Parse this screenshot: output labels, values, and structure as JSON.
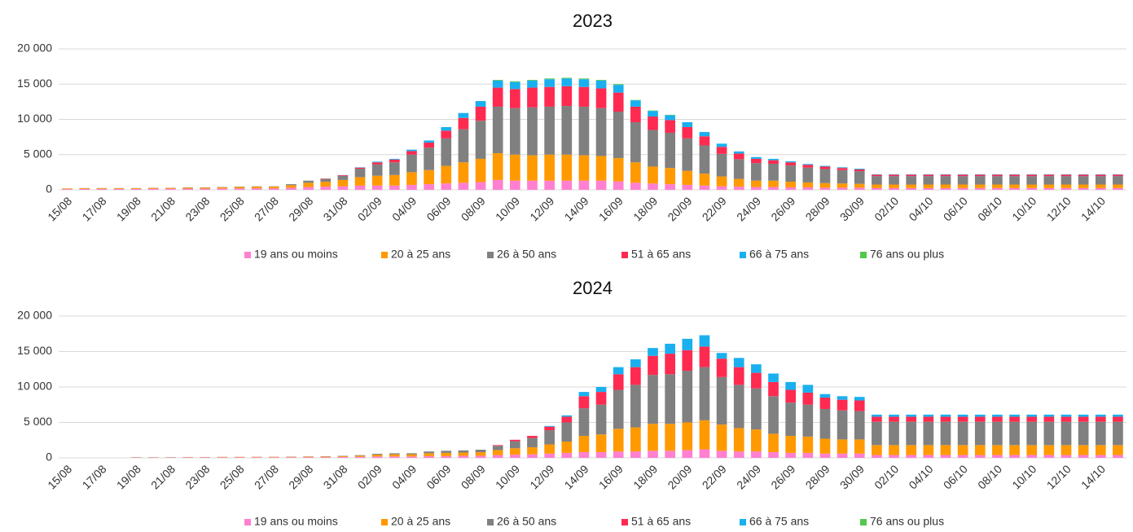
{
  "chart_data": [
    {
      "type": "bar",
      "stacked": true,
      "title": "2023",
      "categories": [
        "15/08",
        null,
        "17/08",
        null,
        "19/08",
        null,
        "21/08",
        null,
        "23/08",
        null,
        "25/08",
        null,
        "27/08",
        null,
        "29/08",
        null,
        "31/08",
        null,
        "02/09",
        null,
        "04/09",
        null,
        "06/09",
        null,
        "08/09",
        null,
        "10/09",
        null,
        "12/09",
        null,
        "14/09",
        null,
        "16/09",
        null,
        "18/09",
        null,
        "20/09",
        null,
        "22/09",
        null,
        "24/09",
        null,
        "26/09",
        null,
        "28/09",
        null,
        "30/09",
        null,
        "02/10",
        null,
        "04/10",
        null,
        "06/10",
        null,
        "08/10",
        null,
        "10/10",
        null,
        "12/10",
        null,
        "14/10",
        null
      ],
      "ylim": [
        0,
        20000
      ],
      "yticks": [
        0,
        {
          "value": 5000,
          "label": "5 000"
        },
        {
          "value": 10000,
          "label": "10 000"
        },
        {
          "value": 15000,
          "label": "15 000"
        },
        {
          "value": 20000,
          "label": "20 000"
        }
      ],
      "grid": true,
      "legend": "bottom",
      "series": [
        {
          "name": "19 ans ou moins",
          "color": "#ff80d0",
          "values": [
            100,
            120,
            120,
            120,
            120,
            150,
            150,
            170,
            170,
            200,
            200,
            220,
            220,
            300,
            400,
            450,
            500,
            600,
            600,
            600,
            700,
            800,
            900,
            1000,
            1100,
            1400,
            1300,
            1300,
            1300,
            1300,
            1300,
            1300,
            1200,
            1000,
            900,
            800,
            700,
            600,
            500,
            450,
            400,
            400,
            350,
            350,
            300,
            300,
            300,
            250,
            250,
            250,
            250,
            250,
            250,
            250,
            250,
            250,
            250,
            250,
            250,
            250,
            250,
            250
          ]
        },
        {
          "name": "20 à 25 ans",
          "color": "#ff9900",
          "values": [
            80,
            100,
            100,
            100,
            100,
            120,
            120,
            140,
            140,
            160,
            200,
            230,
            230,
            350,
            600,
            700,
            900,
            1200,
            1400,
            1500,
            1800,
            2000,
            2500,
            2900,
            3300,
            3800,
            3700,
            3600,
            3700,
            3700,
            3600,
            3500,
            3300,
            2900,
            2400,
            2300,
            2000,
            1700,
            1400,
            1100,
            900,
            900,
            800,
            700,
            650,
            600,
            550,
            500,
            500,
            500,
            500,
            500,
            500,
            500,
            500,
            500,
            500,
            500,
            500,
            500,
            500,
            500
          ]
        },
        {
          "name": "26 à 50 ans",
          "color": "#808080",
          "values": [
            20,
            30,
            30,
            30,
            30,
            30,
            30,
            40,
            40,
            40,
            50,
            50,
            50,
            150,
            300,
            400,
            600,
            1200,
            1600,
            1800,
            2500,
            3200,
            3900,
            4700,
            5400,
            6600,
            6600,
            6800,
            6800,
            6900,
            6900,
            6800,
            6600,
            5700,
            5200,
            5000,
            4600,
            4000,
            3200,
            2800,
            2500,
            2400,
            2300,
            2100,
            2000,
            1900,
            1800,
            1200,
            1200,
            1200,
            1200,
            1200,
            1200,
            1200,
            1200,
            1200,
            1200,
            1200,
            1200,
            1200,
            1200,
            1200
          ]
        },
        {
          "name": "51 à 65 ans",
          "color": "#ff2a50",
          "values": [
            0,
            0,
            0,
            0,
            0,
            0,
            0,
            0,
            0,
            0,
            0,
            0,
            0,
            0,
            0,
            50,
            80,
            150,
            300,
            400,
            500,
            700,
            1100,
            1600,
            2000,
            2700,
            2700,
            2800,
            2800,
            2800,
            2800,
            2800,
            2700,
            2200,
            1900,
            1800,
            1600,
            1300,
            1000,
            800,
            600,
            500,
            450,
            400,
            350,
            300,
            250,
            200,
            200,
            200,
            200,
            200,
            200,
            200,
            200,
            200,
            200,
            200,
            200,
            200,
            200,
            200
          ]
        },
        {
          "name": "66 à 75 ans",
          "color": "#1ab0f0",
          "values": [
            0,
            0,
            0,
            0,
            0,
            0,
            0,
            0,
            0,
            0,
            0,
            0,
            0,
            0,
            0,
            0,
            20,
            50,
            100,
            100,
            200,
            300,
            500,
            700,
            800,
            1000,
            1000,
            1000,
            1100,
            1100,
            1100,
            1100,
            1100,
            900,
            800,
            700,
            700,
            600,
            450,
            300,
            250,
            200,
            150,
            120,
            100,
            100,
            100,
            50,
            50,
            50,
            50,
            50,
            50,
            50,
            50,
            50,
            50,
            50,
            50,
            50,
            50,
            50
          ]
        },
        {
          "name": "76 ans ou plus",
          "color": "#55c84c",
          "values": [
            0,
            0,
            0,
            0,
            0,
            0,
            0,
            0,
            0,
            0,
            0,
            0,
            0,
            0,
            0,
            0,
            0,
            0,
            0,
            0,
            0,
            0,
            0,
            0,
            0,
            100,
            100,
            100,
            100,
            100,
            100,
            100,
            100,
            50,
            50,
            50,
            0,
            0,
            0,
            0,
            0,
            0,
            0,
            0,
            0,
            0,
            0,
            0,
            0,
            0,
            0,
            0,
            0,
            0,
            0,
            0,
            0,
            0,
            0,
            0,
            0,
            0
          ]
        }
      ]
    },
    {
      "type": "bar",
      "stacked": true,
      "title": "2024",
      "categories": [
        "15/08",
        null,
        "17/08",
        null,
        "19/08",
        null,
        "21/08",
        null,
        "23/08",
        null,
        "25/08",
        null,
        "27/08",
        null,
        "29/08",
        null,
        "31/08",
        null,
        "02/09",
        null,
        "04/09",
        null,
        "06/09",
        null,
        "08/09",
        null,
        "10/09",
        null,
        "12/09",
        null,
        "14/09",
        null,
        "16/09",
        null,
        "18/09",
        null,
        "20/09",
        null,
        "22/09",
        null,
        "24/09",
        null,
        "26/09",
        null,
        "28/09",
        null,
        "30/09",
        null,
        "02/10",
        null,
        "04/10",
        null,
        "06/10",
        null,
        "08/10",
        null,
        "10/10",
        null,
        "12/10",
        null,
        "14/10",
        null
      ],
      "ylim": [
        0,
        20000
      ],
      "yticks": [
        0,
        {
          "value": 5000,
          "label": "5 000"
        },
        {
          "value": 10000,
          "label": "10 000"
        },
        {
          "value": 15000,
          "label": "15 000"
        },
        {
          "value": 20000,
          "label": "20 000"
        }
      ],
      "grid": true,
      "legend": "bottom",
      "series": [
        {
          "name": "19 ans ou moins",
          "color": "#ff80d0",
          "values": [
            0,
            0,
            0,
            0,
            50,
            50,
            50,
            60,
            60,
            70,
            70,
            80,
            80,
            90,
            100,
            100,
            120,
            150,
            200,
            200,
            200,
            250,
            250,
            300,
            300,
            400,
            450,
            500,
            600,
            700,
            800,
            800,
            900,
            900,
            1000,
            1000,
            1100,
            1200,
            1000,
            900,
            900,
            800,
            700,
            700,
            600,
            600,
            600,
            400,
            400,
            400,
            400,
            400,
            400,
            400,
            400,
            400,
            400,
            400,
            400,
            400,
            400,
            400
          ]
        },
        {
          "name": "20 à 25 ans",
          "color": "#ff9900",
          "values": [
            0,
            0,
            0,
            0,
            30,
            30,
            30,
            40,
            40,
            50,
            50,
            60,
            60,
            60,
            70,
            80,
            100,
            150,
            250,
            300,
            300,
            400,
            450,
            450,
            500,
            700,
            900,
            1000,
            1300,
            1600,
            2300,
            2500,
            3200,
            3400,
            3800,
            3800,
            3900,
            4100,
            3700,
            3300,
            3100,
            2600,
            2400,
            2300,
            2100,
            2000,
            2000,
            1400,
            1400,
            1400,
            1400,
            1400,
            1400,
            1400,
            1400,
            1400,
            1400,
            1400,
            1400,
            1400,
            1400,
            1400
          ]
        },
        {
          "name": "26 à 50 ans",
          "color": "#808080",
          "values": [
            0,
            0,
            0,
            0,
            20,
            20,
            20,
            20,
            20,
            20,
            20,
            20,
            20,
            30,
            30,
            40,
            60,
            80,
            120,
            150,
            150,
            250,
            300,
            300,
            350,
            600,
            1000,
            1300,
            2000,
            2700,
            3900,
            4200,
            5500,
            6000,
            6900,
            7000,
            7300,
            7500,
            6700,
            6100,
            5800,
            5300,
            4700,
            4500,
            4200,
            4100,
            4000,
            3300,
            3300,
            3300,
            3300,
            3300,
            3300,
            3300,
            3300,
            3300,
            3300,
            3300,
            3300,
            3300,
            3300,
            3300
          ]
        },
        {
          "name": "51 à 65 ans",
          "color": "#ff2a50",
          "values": [
            0,
            0,
            0,
            0,
            0,
            0,
            0,
            0,
            0,
            0,
            0,
            0,
            0,
            0,
            0,
            0,
            0,
            0,
            0,
            0,
            0,
            0,
            0,
            0,
            0,
            100,
            200,
            300,
            500,
            800,
            1700,
            1800,
            2200,
            2500,
            2700,
            2900,
            2900,
            2900,
            2600,
            2500,
            2200,
            2000,
            1800,
            1700,
            1600,
            1500,
            1500,
            700,
            700,
            700,
            700,
            700,
            700,
            700,
            700,
            700,
            700,
            700,
            700,
            700,
            700,
            700
          ]
        },
        {
          "name": "66 à 75 ans",
          "color": "#1ab0f0",
          "values": [
            0,
            0,
            0,
            0,
            0,
            0,
            0,
            0,
            0,
            0,
            0,
            0,
            0,
            0,
            0,
            0,
            0,
            0,
            0,
            0,
            0,
            0,
            0,
            0,
            0,
            0,
            0,
            0,
            100,
            200,
            600,
            700,
            1000,
            1100,
            1100,
            1400,
            1600,
            1600,
            800,
            1300,
            1200,
            1200,
            1100,
            1100,
            500,
            500,
            500,
            300,
            300,
            300,
            300,
            300,
            300,
            300,
            300,
            300,
            300,
            300,
            300,
            300,
            300,
            300
          ]
        },
        {
          "name": "76 ans ou plus",
          "color": "#55c84c",
          "values": [
            0,
            0,
            0,
            0,
            0,
            0,
            0,
            0,
            0,
            0,
            0,
            0,
            0,
            0,
            0,
            0,
            0,
            0,
            0,
            0,
            0,
            0,
            0,
            0,
            0,
            0,
            0,
            0,
            0,
            0,
            0,
            0,
            0,
            0,
            0,
            0,
            0,
            0,
            0,
            0,
            0,
            0,
            0,
            0,
            0,
            0,
            0,
            0,
            0,
            0,
            0,
            0,
            0,
            0,
            0,
            0,
            0,
            0,
            0,
            0,
            0,
            0
          ]
        }
      ]
    }
  ]
}
